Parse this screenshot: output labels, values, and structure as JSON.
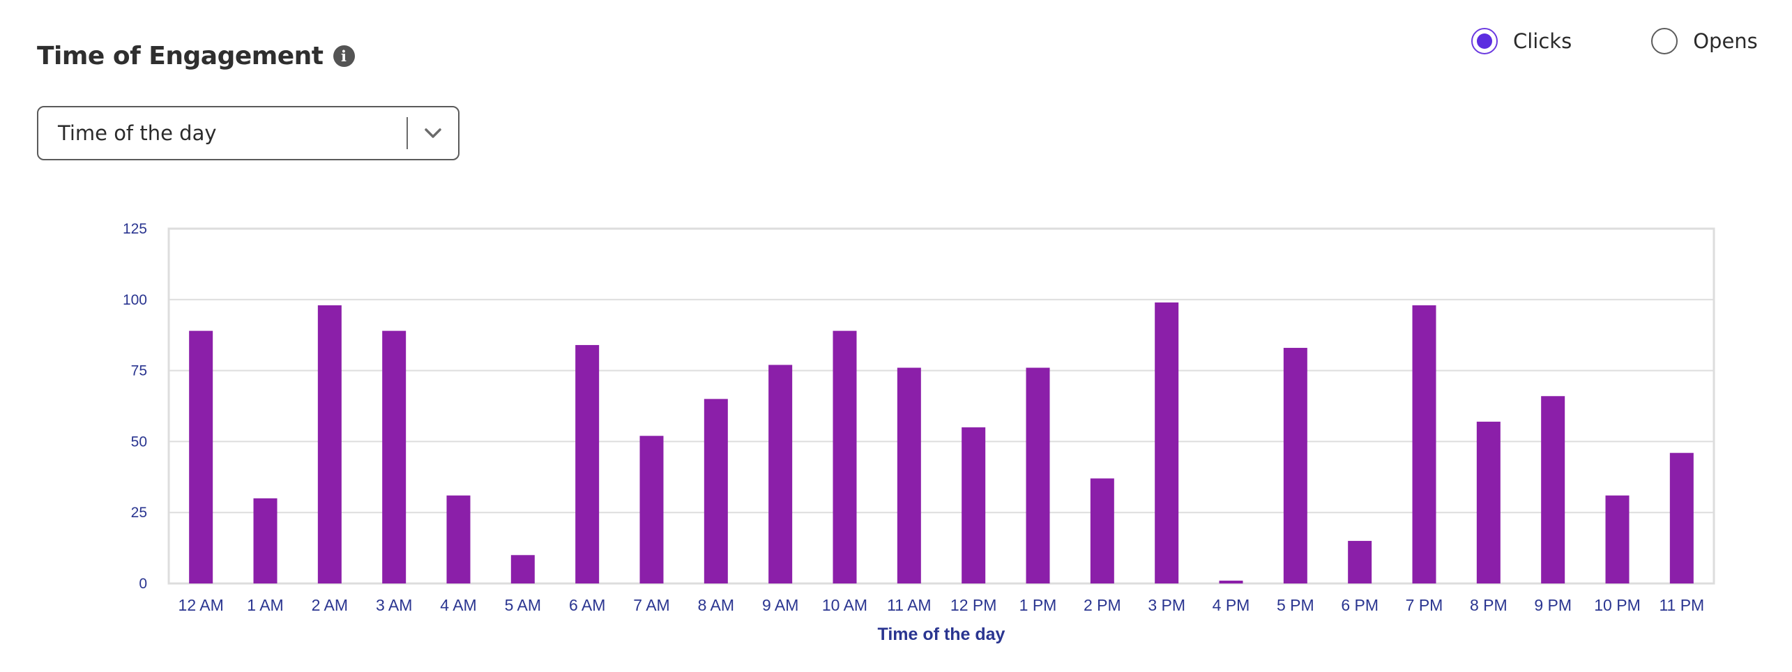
{
  "header": {
    "title": "Time of Engagement",
    "info_glyph": "i"
  },
  "select": {
    "value": "Time of the day"
  },
  "radios": {
    "clicks_label": "Clicks",
    "opens_label": "Opens",
    "selected": "Clicks"
  },
  "colors": {
    "bar": "#8b1fa9",
    "axis_text": "#2a3590",
    "grid": "#dddddd",
    "radio_accent": "#5b2de0"
  },
  "chart_data": {
    "type": "bar",
    "title": "",
    "xlabel": "Time of the day",
    "ylabel": "",
    "ylim": [
      0,
      125
    ],
    "yticks": [
      0,
      25,
      50,
      75,
      100,
      125
    ],
    "grid": true,
    "categories": [
      "12 AM",
      "1 AM",
      "2 AM",
      "3 AM",
      "4 AM",
      "5 AM",
      "6 AM",
      "7 AM",
      "8 AM",
      "9 AM",
      "10 AM",
      "11 AM",
      "12 PM",
      "1 PM",
      "2 PM",
      "3 PM",
      "4 PM",
      "5 PM",
      "6 PM",
      "7 PM",
      "8 PM",
      "9 PM",
      "10 PM",
      "11 PM"
    ],
    "values": [
      89,
      30,
      98,
      89,
      31,
      10,
      84,
      52,
      65,
      77,
      89,
      76,
      55,
      76,
      37,
      99,
      1,
      83,
      15,
      98,
      57,
      66,
      31,
      46
    ]
  }
}
